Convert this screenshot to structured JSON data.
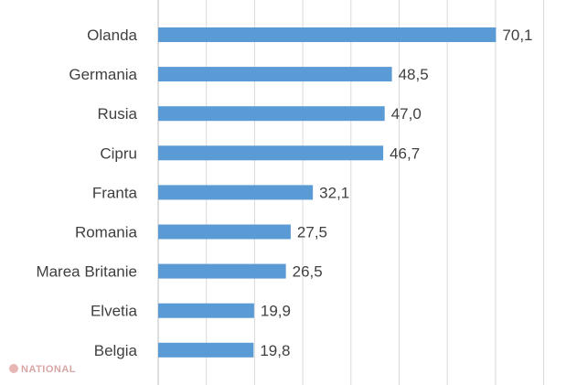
{
  "chart_data": {
    "type": "bar",
    "orientation": "horizontal",
    "categories": [
      "Olanda",
      "Germania",
      "Rusia",
      "Cipru",
      "Franta",
      "Romania",
      "Marea Britanie",
      "Elvetia",
      "Belgia"
    ],
    "values": [
      70.1,
      48.5,
      47.0,
      46.7,
      32.1,
      27.5,
      26.5,
      19.9,
      19.8
    ],
    "value_labels": [
      "70,1",
      "48,5",
      "47,0",
      "46,7",
      "32,1",
      "27,5",
      "26,5",
      "19,9",
      "19,8"
    ],
    "xlim": [
      0,
      80
    ],
    "grid": true,
    "bar_color": "#5b9bd5",
    "grid_color": "#d9d9d9",
    "title": "",
    "xlabel": "",
    "ylabel": ""
  },
  "watermark": {
    "text": "NATIONAL",
    "color": "#d9a5a5"
  }
}
